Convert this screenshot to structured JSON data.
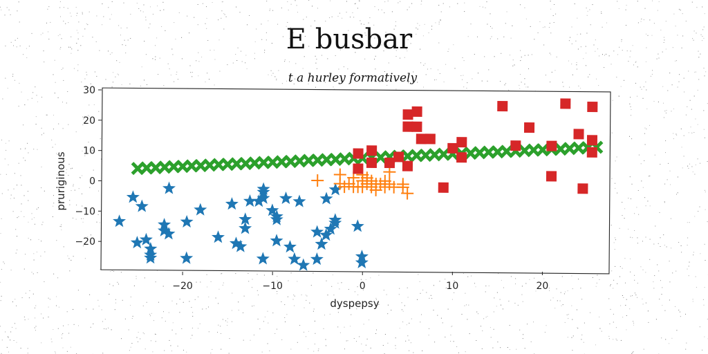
{
  "chart_data": {
    "type": "scatter",
    "title": "E busbar",
    "subtitle": "t a hurley formatively",
    "xlabel": "dyspepsy",
    "ylabel": "pruriginous",
    "xlim": [
      -29,
      27.5
    ],
    "ylim": [
      -30,
      30
    ],
    "xticks": [
      -20,
      -10,
      0,
      10,
      20
    ],
    "xtick_labels": [
      "−20",
      "−10",
      "0",
      "10",
      "20"
    ],
    "yticks": [
      -20,
      -10,
      0,
      10,
      20,
      30
    ],
    "ytick_labels": [
      "−20",
      "−10",
      "0",
      "10",
      "20",
      "30"
    ],
    "grid": false,
    "series": [
      {
        "marker": "star",
        "color": "#1f77b4",
        "points": [
          [
            -27,
            -14
          ],
          [
            -25.5,
            -6
          ],
          [
            -24.5,
            -9
          ],
          [
            -25,
            -21
          ],
          [
            -24,
            -20
          ],
          [
            -23.5,
            -23
          ],
          [
            -23.5,
            -25
          ],
          [
            -23.5,
            -26
          ],
          [
            -22,
            -15
          ],
          [
            -22,
            -17
          ],
          [
            -21.5,
            -18
          ],
          [
            -21.5,
            -3
          ],
          [
            -19.5,
            -26
          ],
          [
            -19.5,
            -14
          ],
          [
            -18,
            -10
          ],
          [
            -16,
            -19
          ],
          [
            -14.5,
            -8
          ],
          [
            -14,
            -21
          ],
          [
            -13.5,
            -22
          ],
          [
            -13,
            -16
          ],
          [
            -13,
            -13
          ],
          [
            -12.5,
            -7
          ],
          [
            -11.5,
            -7
          ],
          [
            -11,
            -6
          ],
          [
            -11,
            -4
          ],
          [
            -11,
            -26
          ],
          [
            -11,
            -3
          ],
          [
            -10,
            -10
          ],
          [
            -9.5,
            -13
          ],
          [
            -9.5,
            -12
          ],
          [
            -9.5,
            -20
          ],
          [
            -8.5,
            -6
          ],
          [
            -8,
            -22
          ],
          [
            -7.5,
            -26
          ],
          [
            -7,
            -7
          ],
          [
            -6.5,
            -28
          ],
          [
            -5,
            -17
          ],
          [
            -5,
            -26
          ],
          [
            -4.5,
            -21
          ],
          [
            -4,
            -18
          ],
          [
            -4,
            -6
          ],
          [
            -3.5,
            -16
          ],
          [
            -3,
            -13
          ],
          [
            -3,
            -14
          ],
          [
            -3,
            -3
          ],
          [
            -0.5,
            -15
          ],
          [
            0,
            -25
          ],
          [
            0,
            -27
          ]
        ]
      },
      {
        "marker": "plus",
        "color": "#ff7f0e",
        "points": [
          [
            -5,
            0
          ],
          [
            -2.5,
            2
          ],
          [
            -2.5,
            -1
          ],
          [
            -2,
            -2
          ],
          [
            -1.5,
            -1
          ],
          [
            -1,
            -2
          ],
          [
            -1,
            1
          ],
          [
            -0.5,
            -2
          ],
          [
            0,
            0
          ],
          [
            0,
            2
          ],
          [
            0,
            -2
          ],
          [
            0.5,
            -1
          ],
          [
            0.5,
            1
          ],
          [
            1,
            -2
          ],
          [
            1,
            0
          ],
          [
            1.5,
            -1
          ],
          [
            1.5,
            -3
          ],
          [
            2,
            -1
          ],
          [
            2.5,
            0
          ],
          [
            2.5,
            -2
          ],
          [
            3,
            3
          ],
          [
            3,
            -1
          ],
          [
            3.5,
            -2
          ],
          [
            4.5,
            -1
          ],
          [
            4.5,
            -2
          ],
          [
            5,
            -4
          ]
        ]
      },
      {
        "marker": "x",
        "color": "#2ca02c",
        "points": [
          [
            -25,
            3.5
          ],
          [
            -24,
            3.7
          ],
          [
            -23,
            3.8
          ],
          [
            -22,
            4
          ],
          [
            -21,
            4.2
          ],
          [
            -20,
            4.3
          ],
          [
            -19,
            4.5
          ],
          [
            -18,
            4.6
          ],
          [
            -17,
            4.8
          ],
          [
            -16,
            5
          ],
          [
            -15,
            5.1
          ],
          [
            -14,
            5.3
          ],
          [
            -13,
            5.4
          ],
          [
            -12,
            5.6
          ],
          [
            -11,
            5.8
          ],
          [
            -10,
            5.9
          ],
          [
            -9,
            6.1
          ],
          [
            -8,
            6.2
          ],
          [
            -7,
            6.4
          ],
          [
            -6,
            6.6
          ],
          [
            -5,
            6.7
          ],
          [
            -4,
            6.9
          ],
          [
            -3,
            7
          ],
          [
            -2,
            7.2
          ],
          [
            -1,
            7.4
          ],
          [
            0,
            7.5
          ],
          [
            1,
            7.7
          ],
          [
            2,
            7.8
          ],
          [
            3,
            8
          ],
          [
            4,
            8.2
          ],
          [
            5,
            8.3
          ],
          [
            6,
            8.5
          ],
          [
            7,
            8.6
          ],
          [
            8,
            8.8
          ],
          [
            9,
            9
          ],
          [
            10,
            9.1
          ],
          [
            11,
            9.3
          ],
          [
            12,
            9.4
          ],
          [
            13,
            9.6
          ],
          [
            14,
            9.8
          ],
          [
            15,
            9.9
          ],
          [
            16,
            10.1
          ],
          [
            17,
            10.2
          ],
          [
            18,
            10.4
          ],
          [
            19,
            10.6
          ],
          [
            20,
            10.7
          ],
          [
            21,
            10.9
          ],
          [
            22,
            11
          ],
          [
            23,
            11.2
          ],
          [
            24,
            11.4
          ],
          [
            25,
            11.5
          ],
          [
            26,
            11.7
          ]
        ]
      },
      {
        "marker": "square",
        "color": "#d62728",
        "points": [
          [
            -0.5,
            9
          ],
          [
            -0.5,
            4
          ],
          [
            1,
            10
          ],
          [
            1,
            6
          ],
          [
            3,
            6
          ],
          [
            4,
            8
          ],
          [
            5,
            18
          ],
          [
            5,
            22
          ],
          [
            5,
            5
          ],
          [
            6,
            23
          ],
          [
            6,
            18
          ],
          [
            6.5,
            14
          ],
          [
            7.5,
            14
          ],
          [
            9,
            -2
          ],
          [
            10,
            11
          ],
          [
            11,
            13
          ],
          [
            11,
            8
          ],
          [
            15.5,
            25
          ],
          [
            17,
            12
          ],
          [
            18.5,
            18
          ],
          [
            21,
            12
          ],
          [
            21,
            2
          ],
          [
            22.5,
            26
          ],
          [
            24,
            16
          ],
          [
            24.5,
            -2
          ],
          [
            25.5,
            25
          ],
          [
            25.5,
            14
          ],
          [
            25.5,
            10
          ]
        ]
      }
    ]
  }
}
